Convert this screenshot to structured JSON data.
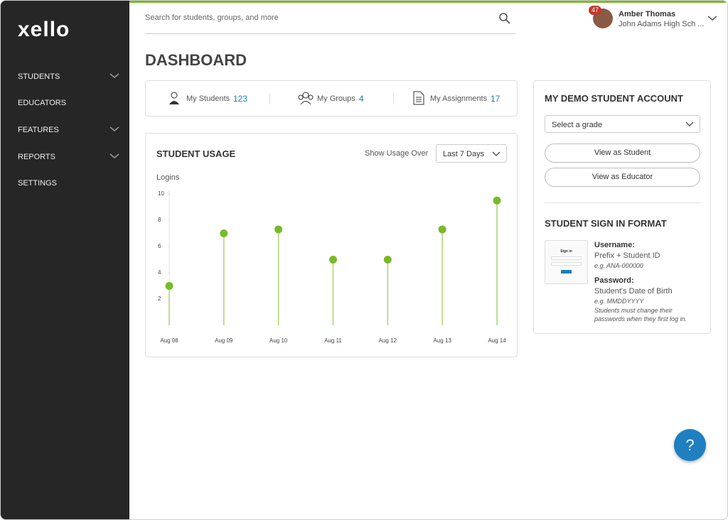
{
  "sidebar": {
    "logo": "xello",
    "nav": [
      "STUDENTS",
      "EDUCATORS",
      "FEATURES",
      "REPORTS",
      "SETTINGS"
    ]
  },
  "topbar": {
    "search_placeholder": "Search for students, groups, and more",
    "badge": "47",
    "user_name": "Amber Thomas",
    "school": "John Adams High Sch ..."
  },
  "page_title": "DASHBOARD",
  "stats": [
    {
      "label": "My Students",
      "value": "123"
    },
    {
      "label": "My Groups",
      "value": "4"
    },
    {
      "label": "My Assignments",
      "value": "17"
    }
  ],
  "usage_card": {
    "title": "STUDENT USAGE",
    "filter_label": "Show Usage Over",
    "filter_value": "Last 7 Days"
  },
  "chart_data": {
    "type": "line",
    "y_label": "Logins",
    "categories": [
      "Aug 08",
      "Aug 09",
      "Aug 10",
      "Aug 11",
      "Aug 12",
      "Aug 13",
      "Aug 14"
    ],
    "values": [
      3,
      7,
      7.3,
      5,
      5,
      7.3,
      9.5
    ],
    "color": "#7ab929",
    "ylim": [
      0,
      10
    ],
    "yticks": [
      2,
      4,
      6,
      8,
      10
    ],
    "grid": false
  },
  "demo_account": {
    "title": "MY DEMO STUDENT ACCOUNT",
    "select": "Select a grade",
    "buttons": [
      "View as Student",
      "View as Educator"
    ]
  },
  "sign_in_format": {
    "title": "STUDENT SIGN IN FORMAT",
    "preview_title": "Sign in",
    "username_label": "Username:",
    "username_value": "Prefix + Student ID",
    "username_example": "e.g. ANA-000000",
    "password_label": "Password:",
    "password_value": "Student's Date of Birth",
    "password_example": "e.g. MMDDYYYY",
    "password_note": "Students must change their passwords when they first log in."
  },
  "help": "?"
}
